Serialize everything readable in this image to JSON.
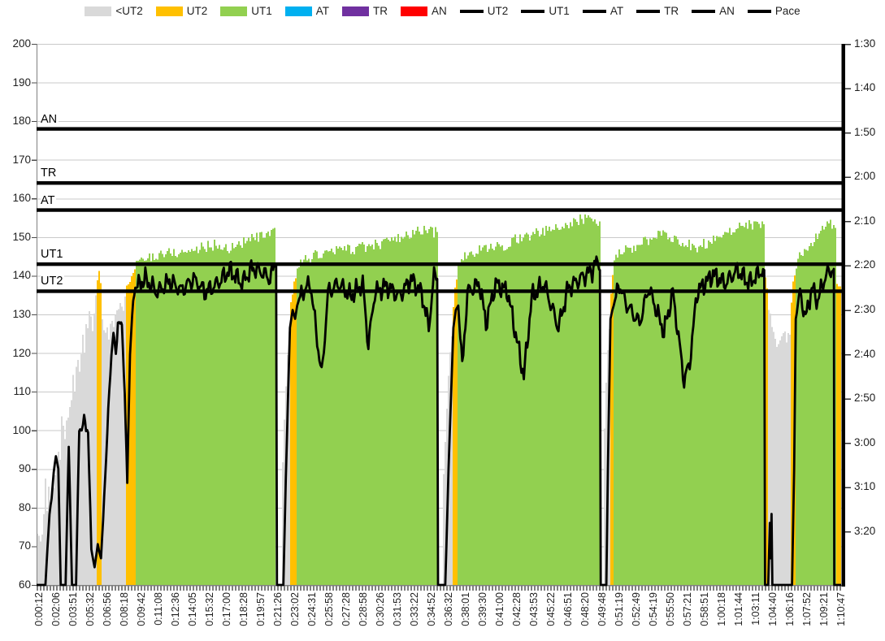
{
  "chart_data": {
    "type": "combo",
    "description": "Heart-rate training-zone bars (left axis, bpm 60-200) with pace line (right axis, min:sec per 500m) over a 1h10m rowing session of 5 work pieces",
    "colors": {
      "zone_fills": {
        "lt_ut2": "#D9D9D9",
        "ut2": "#FFC000",
        "ut1": "#92D050",
        "at": "#00B0F0",
        "tr": "#7030A0",
        "an": "#FF0000"
      },
      "line": "#000000",
      "gridline": "#C9C9C9",
      "axis": "#808080",
      "tick_comb": "#7F7F7F"
    },
    "legend": {
      "fill_series": [
        {
          "label": "<UT2",
          "zone": "lt_ut2"
        },
        {
          "label": "UT2",
          "zone": "ut2"
        },
        {
          "label": "UT1",
          "zone": "ut1"
        },
        {
          "label": "AT",
          "zone": "at"
        },
        {
          "label": "TR",
          "zone": "tr"
        },
        {
          "label": "AN",
          "zone": "an"
        }
      ],
      "line_series": [
        {
          "label": "UT2"
        },
        {
          "label": "UT1"
        },
        {
          "label": "AT"
        },
        {
          "label": "TR"
        },
        {
          "label": "AN"
        },
        {
          "label": "Pace"
        }
      ]
    },
    "y_axis_left": {
      "min": 60,
      "max": 200,
      "step": 10,
      "tick_labels": [
        "200",
        "190",
        "180",
        "170",
        "160",
        "150",
        "140",
        "130",
        "120",
        "110",
        "100",
        "90",
        "80",
        "70",
        "60"
      ]
    },
    "y_axis_right": {
      "top_seconds": 90,
      "bottom_seconds": 212,
      "label_step_seconds": 10,
      "tick_labels": [
        "1:30",
        "1:40",
        "1:50",
        "2:00",
        "2:10",
        "2:20",
        "2:30",
        "2:40",
        "2:50",
        "3:00",
        "3:10",
        "3:20"
      ]
    },
    "x_axis": {
      "labels": [
        "0:00:12",
        "0:02:06",
        "0:03:51",
        "0:05:32",
        "0:06:56",
        "0:08:18",
        "0:09:42",
        "0:11:08",
        "0:12:36",
        "0:14:05",
        "0:15:32",
        "0:17:00",
        "0:18:28",
        "0:19:57",
        "0:21:26",
        "0:23:02",
        "0:24:31",
        "0:25:58",
        "0:27:28",
        "0:28:58",
        "0:30:26",
        "0:31:53",
        "0:33:22",
        "0:34:52",
        "0:36:32",
        "0:38:01",
        "0:39:30",
        "0:41:00",
        "0:42:28",
        "0:43:53",
        "0:45:22",
        "0:46:51",
        "0:48:20",
        "0:49:48",
        "0:51:19",
        "0:52:49",
        "0:54:19",
        "0:55:50",
        "0:57:21",
        "0:58:51",
        "1:00:18",
        "1:01:44",
        "1:03:11",
        "1:04:40",
        "1:06:16",
        "1:07:52",
        "1:09:21",
        "1:10:47"
      ]
    },
    "zone_thresholds": [
      {
        "name": "AN",
        "bpm": 178
      },
      {
        "name": "TR",
        "bpm": 164
      },
      {
        "name": "AT",
        "bpm": 157
      },
      {
        "name": "UT1",
        "bpm": 143
      },
      {
        "name": "UT2",
        "bpm": 136
      }
    ],
    "hr_bars": {
      "unit": "bpm",
      "segments": [
        {
          "from": 0.0,
          "to": 0.0744,
          "zone": "lt_ut2",
          "tops": [
            70,
            78,
            86,
            95,
            103,
            112,
            120,
            127,
            132
          ],
          "jitter": 4,
          "spiky": true
        },
        {
          "from": 0.0744,
          "to": 0.0814,
          "zone": "ut2",
          "tops": [
            136,
            141,
            137
          ],
          "jitter": 1
        },
        {
          "from": 0.0814,
          "to": 0.1106,
          "zone": "lt_ut2",
          "tops": [
            128,
            125,
            128,
            131,
            134
          ],
          "jitter": 2
        },
        {
          "from": 0.1106,
          "to": 0.1226,
          "zone": "ut2",
          "tops": [
            136,
            139,
            142
          ],
          "jitter": 1
        },
        {
          "from": 0.1226,
          "to": 0.2975,
          "zone": "ut1",
          "tops": [
            143,
            145,
            146,
            146,
            147,
            148,
            147,
            149,
            150,
            151
          ],
          "jitter": 1.5
        },
        {
          "from": 0.3045,
          "to": 0.3146,
          "zone": "lt_ut2",
          "tops": [
            86,
            103,
            118,
            128
          ],
          "jitter": 1
        },
        {
          "from": 0.3146,
          "to": 0.3236,
          "zone": "ut2",
          "tops": [
            131,
            137,
            142
          ],
          "jitter": 1
        },
        {
          "from": 0.3236,
          "to": 0.4975,
          "zone": "ut1",
          "tops": [
            143,
            145,
            146,
            147,
            147,
            148,
            149,
            150,
            152,
            151
          ],
          "jitter": 1.5
        },
        {
          "from": 0.5055,
          "to": 0.5176,
          "zone": "lt_ut2",
          "tops": [
            88,
            106,
            120,
            128
          ],
          "jitter": 1
        },
        {
          "from": 0.5176,
          "to": 0.5236,
          "zone": "ut2",
          "tops": [
            132,
            138,
            142
          ],
          "jitter": 1
        },
        {
          "from": 0.5236,
          "to": 0.6995,
          "zone": "ut1",
          "tops": [
            144,
            146,
            147,
            148,
            150,
            151,
            152,
            153,
            155,
            154
          ],
          "jitter": 1.5
        },
        {
          "from": 0.7045,
          "to": 0.7126,
          "zone": "lt_ut2",
          "tops": [
            94,
            112,
            123,
            129
          ],
          "jitter": 1
        },
        {
          "from": 0.7126,
          "to": 0.7166,
          "zone": "ut2",
          "tops": [
            132,
            139,
            143
          ],
          "jitter": 1
        },
        {
          "from": 0.7166,
          "to": 0.9045,
          "zone": "ut1",
          "tops": [
            145,
            147,
            149,
            151,
            149,
            147,
            150,
            152,
            153,
            153
          ],
          "jitter": 1.5
        },
        {
          "from": 0.9045,
          "to": 0.9085,
          "zone": "ut2",
          "tops": [
            140,
            137,
            136
          ],
          "jitter": 0.5
        },
        {
          "from": 0.9085,
          "to": 0.9367,
          "zone": "lt_ut2",
          "tops": [
            133,
            127,
            122,
            124,
            126,
            124,
            127
          ],
          "jitter": 2
        },
        {
          "from": 0.9367,
          "to": 0.9427,
          "zone": "ut2",
          "tops": [
            132,
            138,
            143
          ],
          "jitter": 1
        },
        {
          "from": 0.9427,
          "to": 0.992,
          "zone": "ut1",
          "tops": [
            143,
            146,
            148,
            150,
            152,
            154,
            153
          ],
          "jitter": 1.5
        },
        {
          "from": 0.993,
          "to": 0.999,
          "zone": "ut2",
          "tops": [
            138,
            137
          ],
          "jitter": 0.5
        }
      ]
    },
    "pace_line": {
      "unit": "seconds_per_500m",
      "bottom_seconds": 212,
      "segments": [
        {
          "name": "warmup",
          "wiggle": 1.2,
          "anchors": [
            [
              0.0,
              212
            ],
            [
              0.011,
              212
            ],
            [
              0.016,
              196
            ],
            [
              0.024,
              183
            ],
            [
              0.027,
              185
            ],
            [
              0.03,
              212
            ],
            [
              0.036,
              212
            ],
            [
              0.04,
              181
            ],
            [
              0.044,
              212
            ],
            [
              0.049,
              212
            ],
            [
              0.053,
              176
            ],
            [
              0.056,
              178
            ],
            [
              0.059,
              174
            ],
            [
              0.064,
              178
            ],
            [
              0.068,
              204
            ],
            [
              0.072,
              208
            ],
            [
              0.076,
              203
            ],
            [
              0.08,
              206
            ],
            [
              0.084,
              193
            ],
            [
              0.089,
              172
            ],
            [
              0.0955,
              154
            ],
            [
              0.0985,
              160
            ],
            [
              0.101,
              154
            ],
            [
              0.104,
              152
            ],
            [
              0.106,
              153
            ],
            [
              0.1095,
              170
            ],
            [
              0.1126,
              188
            ],
            [
              0.116,
              160
            ],
            [
              0.12,
              148
            ],
            [
              0.1226,
              145
            ]
          ]
        },
        {
          "name": "piece1",
          "wiggle": 2.6,
          "anchors": [
            [
              0.1226,
              145
            ],
            [
              0.135,
              143
            ],
            [
              0.15,
              146
            ],
            [
              0.165,
              143.5
            ],
            [
              0.18,
              145.5
            ],
            [
              0.195,
              143
            ],
            [
              0.21,
              146
            ],
            [
              0.225,
              144
            ],
            [
              0.24,
              141
            ],
            [
              0.255,
              144
            ],
            [
              0.268,
              140.5
            ],
            [
              0.28,
              141.5
            ],
            [
              0.29,
              143
            ],
            [
              0.295,
              140
            ],
            [
              0.2975,
              140
            ]
          ]
        },
        {
          "name": "rest1",
          "wiggle": 0,
          "anchors": [
            [
              0.2975,
              140
            ],
            [
              0.2985,
              212
            ],
            [
              0.3065,
              212
            ],
            [
              0.3095,
              188
            ],
            [
              0.3146,
              154
            ],
            [
              0.318,
              150
            ],
            [
              0.321,
              152
            ],
            [
              0.3236,
              149
            ]
          ]
        },
        {
          "name": "piece2",
          "wiggle": 2.6,
          "anchors": [
            [
              0.3236,
              149
            ],
            [
              0.33,
              146
            ],
            [
              0.34,
              144
            ],
            [
              0.354,
              165
            ],
            [
              0.362,
              146
            ],
            [
              0.375,
              144
            ],
            [
              0.39,
              147
            ],
            [
              0.405,
              144
            ],
            [
              0.412,
              158
            ],
            [
              0.42,
              146
            ],
            [
              0.435,
              144.5
            ],
            [
              0.45,
              147
            ],
            [
              0.465,
              143
            ],
            [
              0.478,
              146
            ],
            [
              0.487,
              154
            ],
            [
              0.4935,
              142
            ],
            [
              0.4975,
              143
            ]
          ]
        },
        {
          "name": "rest2",
          "wiggle": 0,
          "anchors": [
            [
              0.4975,
              143
            ],
            [
              0.4985,
              212
            ],
            [
              0.5075,
              212
            ],
            [
              0.5115,
              186
            ],
            [
              0.5176,
              154
            ],
            [
              0.5206,
              150
            ],
            [
              0.5236,
              149
            ]
          ]
        },
        {
          "name": "piece3",
          "wiggle": 2.6,
          "anchors": [
            [
              0.5236,
              149
            ],
            [
              0.5286,
              163
            ],
            [
              0.535,
              146
            ],
            [
              0.55,
              144
            ],
            [
              0.558,
              153
            ],
            [
              0.57,
              144
            ],
            [
              0.585,
              146
            ],
            [
              0.605,
              165
            ],
            [
              0.615,
              147
            ],
            [
              0.63,
              144
            ],
            [
              0.648,
              154
            ],
            [
              0.66,
              145
            ],
            [
              0.675,
              143
            ],
            [
              0.69,
              141
            ],
            [
              0.6965,
              139
            ],
            [
              0.6995,
              141
            ]
          ]
        },
        {
          "name": "rest3",
          "wiggle": 0,
          "anchors": [
            [
              0.6995,
              141
            ],
            [
              0.7005,
              212
            ],
            [
              0.7075,
              212
            ],
            [
              0.7095,
              185
            ],
            [
              0.7126,
              152
            ],
            [
              0.715,
              150
            ],
            [
              0.7166,
              149
            ]
          ]
        },
        {
          "name": "piece4",
          "wiggle": 2.6,
          "anchors": [
            [
              0.7166,
              149
            ],
            [
              0.7236,
              144
            ],
            [
              0.73,
              148
            ],
            [
              0.7487,
              153
            ],
            [
              0.76,
              145
            ],
            [
              0.779,
              155
            ],
            [
              0.79,
              146
            ],
            [
              0.804,
              166
            ],
            [
              0.811,
              162
            ],
            [
              0.82,
              146
            ],
            [
              0.84,
              142
            ],
            [
              0.855,
              144
            ],
            [
              0.87,
              141
            ],
            [
              0.885,
              144
            ],
            [
              0.8955,
              142
            ],
            [
              0.9035,
              141
            ]
          ]
        },
        {
          "name": "rest4",
          "wiggle": 0,
          "anchors": [
            [
              0.9035,
              141
            ],
            [
              0.9045,
              212
            ],
            [
              0.9085,
              212
            ],
            [
              0.9105,
              198
            ],
            [
              0.9115,
              206
            ],
            [
              0.9126,
              196
            ],
            [
              0.9136,
              212
            ],
            [
              0.938,
              212
            ],
            [
              0.9407,
              186
            ],
            [
              0.9427,
              152
            ]
          ]
        },
        {
          "name": "piece5",
          "wiggle": 2.6,
          "anchors": [
            [
              0.9427,
              152
            ],
            [
              0.948,
              146
            ],
            [
              0.955,
              152
            ],
            [
              0.9625,
              145
            ],
            [
              0.97,
              148
            ],
            [
              0.978,
              143
            ],
            [
              0.985,
              141
            ],
            [
              0.99,
              141
            ],
            [
              0.9905,
              212
            ],
            [
              0.999,
              212
            ]
          ]
        }
      ]
    }
  }
}
